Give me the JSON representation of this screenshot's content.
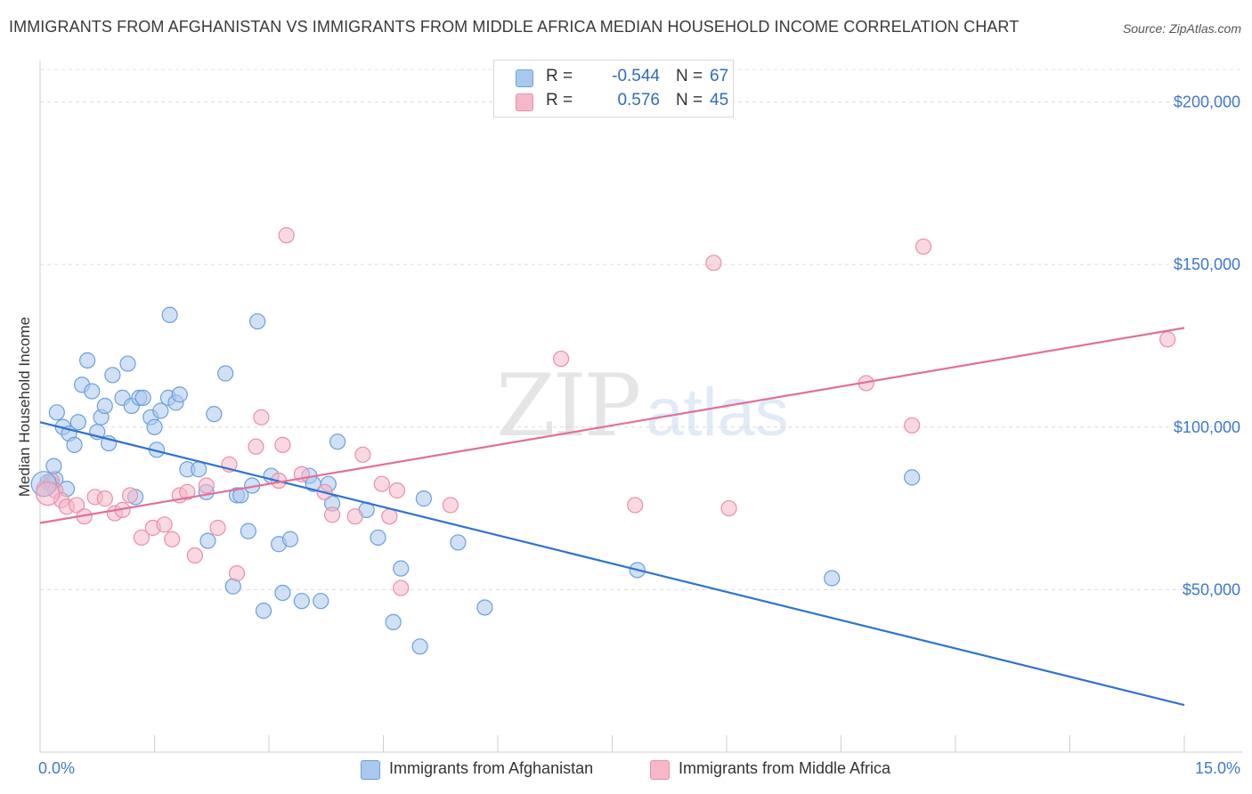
{
  "title": "IMMIGRANTS FROM AFGHANISTAN VS IMMIGRANTS FROM MIDDLE AFRICA MEDIAN HOUSEHOLD INCOME CORRELATION CHART",
  "source": "Source: ZipAtlas.com",
  "watermark": {
    "zip": "ZIP",
    "atlas": "atlas"
  },
  "legend": {
    "r_label": "R =",
    "n_label": "N =",
    "rows": [
      {
        "r": "-0.544",
        "n": "67",
        "color": "#a9c8ef"
      },
      {
        "r": "0.576",
        "n": "45",
        "color": "#f6b8c9"
      }
    ]
  },
  "colors": {
    "afghanistan_fill": "#a9c8ef",
    "afghanistan_stroke": "#6b9fdc",
    "afghanistan_line": "#2f72d0",
    "middle_africa_fill": "#f6b8c9",
    "middle_africa_stroke": "#e98fab",
    "middle_africa_line": "#e0709a",
    "tick_label": "#3f78cf"
  },
  "chart_data": {
    "type": "scatter",
    "title": "IMMIGRANTS FROM AFGHANISTAN VS IMMIGRANTS FROM MIDDLE AFRICA MEDIAN HOUSEHOLD INCOME CORRELATION CHART",
    "xlabel": "",
    "ylabel": "Median Household Income",
    "xlim": [
      0,
      15
    ],
    "ylim": [
      0,
      210000
    ],
    "x_tick_labels": [
      "0.0%",
      "15.0%"
    ],
    "y_ticks": [
      50000,
      100000,
      150000,
      200000
    ],
    "y_tick_labels": [
      "$50,000",
      "$100,000",
      "$150,000",
      "$200,000"
    ],
    "grid": "horizontal dashed",
    "legend_placement": "bottom-center",
    "series": [
      {
        "name": "Immigrants from Afghanistan",
        "R": -0.544,
        "N": 67,
        "trend": {
          "x": [
            0,
            15
          ],
          "y": [
            101500,
            14500
          ]
        },
        "points": [
          [
            0.1,
            83000
          ],
          [
            0.15,
            82500
          ],
          [
            0.2,
            84000
          ],
          [
            0.18,
            88000
          ],
          [
            0.22,
            104500
          ],
          [
            0.3,
            100000
          ],
          [
            0.38,
            98000
          ],
          [
            0.45,
            94500
          ],
          [
            0.5,
            101500
          ],
          [
            0.55,
            113000
          ],
          [
            0.62,
            120500
          ],
          [
            0.68,
            111000
          ],
          [
            0.75,
            98500
          ],
          [
            0.8,
            103000
          ],
          [
            0.85,
            106500
          ],
          [
            0.9,
            95000
          ],
          [
            0.95,
            116000
          ],
          [
            1.08,
            109000
          ],
          [
            1.15,
            119500
          ],
          [
            1.2,
            106500
          ],
          [
            1.3,
            109000
          ],
          [
            1.35,
            109000
          ],
          [
            1.45,
            103000
          ],
          [
            1.5,
            100000
          ],
          [
            1.53,
            93000
          ],
          [
            1.58,
            105000
          ],
          [
            1.68,
            109000
          ],
          [
            1.7,
            134500
          ],
          [
            1.78,
            107500
          ],
          [
            1.83,
            110000
          ],
          [
            1.93,
            87000
          ],
          [
            2.08,
            87000
          ],
          [
            2.18,
            80000
          ],
          [
            2.2,
            65000
          ],
          [
            2.28,
            104000
          ],
          [
            2.43,
            116500
          ],
          [
            2.53,
            51000
          ],
          [
            2.58,
            79000
          ],
          [
            2.63,
            79000
          ],
          [
            2.73,
            68000
          ],
          [
            2.78,
            82000
          ],
          [
            2.85,
            132500
          ],
          [
            2.93,
            43500
          ],
          [
            3.03,
            85000
          ],
          [
            3.13,
            64000
          ],
          [
            3.18,
            49000
          ],
          [
            3.28,
            65500
          ],
          [
            3.43,
            46500
          ],
          [
            3.53,
            85000
          ],
          [
            3.58,
            82500
          ],
          [
            3.68,
            46500
          ],
          [
            3.78,
            82500
          ],
          [
            3.83,
            76500
          ],
          [
            3.9,
            95500
          ],
          [
            4.28,
            74500
          ],
          [
            4.43,
            66000
          ],
          [
            4.63,
            40000
          ],
          [
            4.73,
            56500
          ],
          [
            4.98,
            32500
          ],
          [
            5.03,
            78000
          ],
          [
            5.48,
            64500
          ],
          [
            5.83,
            44500
          ],
          [
            7.83,
            56000
          ],
          [
            10.38,
            53500
          ],
          [
            11.43,
            84500
          ],
          [
            0.35,
            81000
          ],
          [
            1.25,
            78500
          ]
        ]
      },
      {
        "name": "Immigrants from Middle Africa",
        "R": 0.576,
        "N": 45,
        "trend": {
          "x": [
            0,
            15
          ],
          "y": [
            70500,
            130500
          ]
        },
        "points": [
          [
            0.05,
            81000
          ],
          [
            0.15,
            83500
          ],
          [
            0.2,
            80500
          ],
          [
            0.28,
            77500
          ],
          [
            0.35,
            75500
          ],
          [
            0.48,
            76000
          ],
          [
            0.58,
            72500
          ],
          [
            0.72,
            78500
          ],
          [
            0.85,
            78000
          ],
          [
            0.98,
            73500
          ],
          [
            1.08,
            74500
          ],
          [
            1.18,
            79000
          ],
          [
            1.33,
            66000
          ],
          [
            1.48,
            69000
          ],
          [
            1.63,
            70000
          ],
          [
            1.73,
            65500
          ],
          [
            1.83,
            79000
          ],
          [
            1.93,
            80000
          ],
          [
            2.03,
            60500
          ],
          [
            2.18,
            82000
          ],
          [
            2.33,
            69000
          ],
          [
            2.48,
            88500
          ],
          [
            2.58,
            55000
          ],
          [
            2.83,
            94000
          ],
          [
            2.9,
            103000
          ],
          [
            3.13,
            83500
          ],
          [
            3.18,
            94500
          ],
          [
            3.23,
            159000
          ],
          [
            3.43,
            85500
          ],
          [
            3.73,
            80000
          ],
          [
            3.83,
            73000
          ],
          [
            4.13,
            72500
          ],
          [
            4.23,
            91500
          ],
          [
            4.48,
            82500
          ],
          [
            4.58,
            72500
          ],
          [
            4.68,
            80500
          ],
          [
            4.73,
            50500
          ],
          [
            5.38,
            76000
          ],
          [
            6.83,
            121000
          ],
          [
            7.8,
            76000
          ],
          [
            8.83,
            150500
          ],
          [
            9.03,
            75000
          ],
          [
            10.83,
            113500
          ],
          [
            11.43,
            100500
          ],
          [
            11.58,
            155500
          ]
        ]
      }
    ],
    "extra_points_middle_africa": [
      [
        14.78,
        127000
      ]
    ]
  },
  "bottom_legend": {
    "items": [
      {
        "label": "Immigrants from Afghanistan"
      },
      {
        "label": "Immigrants from Middle Africa"
      }
    ]
  }
}
